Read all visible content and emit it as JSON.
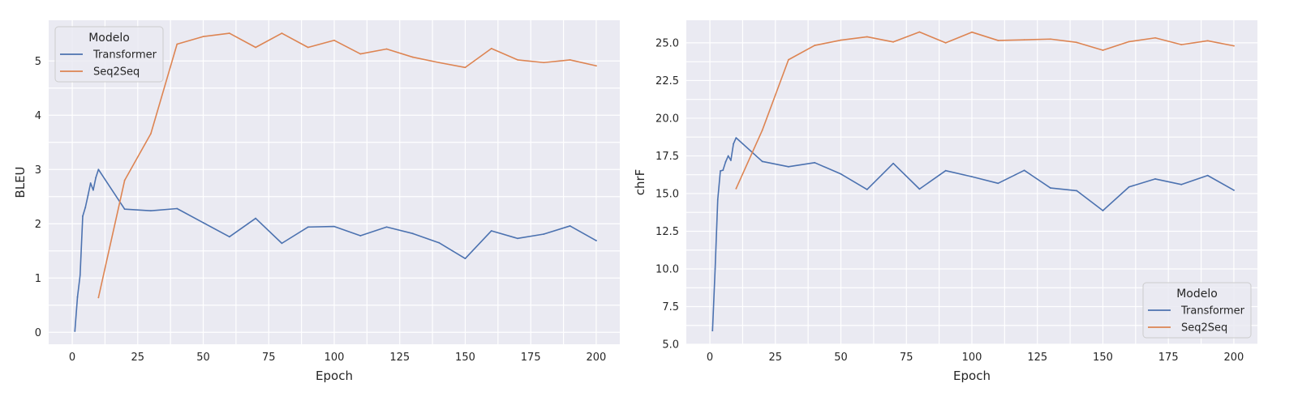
{
  "chart_data": [
    {
      "type": "line",
      "title": "",
      "xlabel": "Epoch",
      "ylabel": "BLEU",
      "xlim": [
        -9,
        209
      ],
      "ylim": [
        -0.22,
        5.75
      ],
      "xticks": [
        0,
        25,
        50,
        75,
        100,
        125,
        150,
        175,
        200
      ],
      "yticks": [
        0,
        1,
        2,
        3,
        4,
        5
      ],
      "grid": true,
      "legend": {
        "title": "Modelo",
        "placement": "upper-left"
      },
      "series": [
        {
          "name": "Transformer",
          "color": "#4c72b0",
          "x": [
            1,
            2,
            3,
            4,
            5,
            6,
            7,
            8,
            9,
            10,
            20,
            30,
            40,
            50,
            60,
            70,
            80,
            90,
            100,
            110,
            120,
            130,
            140,
            150,
            160,
            170,
            180,
            190,
            200
          ],
          "y": [
            0.02,
            0.65,
            1.05,
            2.14,
            2.3,
            2.52,
            2.75,
            2.62,
            2.85,
            3.0,
            2.27,
            2.24,
            2.28,
            2.02,
            1.76,
            2.1,
            1.64,
            1.94,
            1.95,
            1.78,
            1.94,
            1.82,
            1.65,
            1.36,
            1.87,
            1.73,
            1.81,
            1.96,
            1.69
          ]
        },
        {
          "name": "Seq2Seq",
          "color": "#dd8452",
          "x": [
            10,
            20,
            30,
            40,
            50,
            60,
            70,
            80,
            90,
            100,
            110,
            120,
            130,
            140,
            150,
            160,
            170,
            180,
            190,
            200
          ],
          "y": [
            0.64,
            2.8,
            3.66,
            5.31,
            5.45,
            5.51,
            5.25,
            5.51,
            5.25,
            5.38,
            5.13,
            5.22,
            5.07,
            4.97,
            4.88,
            5.23,
            5.02,
            4.97,
            5.02,
            4.91
          ]
        }
      ]
    },
    {
      "type": "line",
      "title": "",
      "xlabel": "Epoch",
      "ylabel": "chrF",
      "xlim": [
        -9,
        209
      ],
      "ylim": [
        5.0,
        26.5
      ],
      "xticks": [
        0,
        25,
        50,
        75,
        100,
        125,
        150,
        175,
        200
      ],
      "yticks": [
        5.0,
        7.5,
        10.0,
        12.5,
        15.0,
        17.5,
        20.0,
        22.5,
        25.0
      ],
      "ytick_labels": [
        "5.0",
        "7.5",
        "10.0",
        "12.5",
        "15.0",
        "17.5",
        "20.0",
        "22.5",
        "25.0"
      ],
      "grid": true,
      "legend": {
        "title": "Modelo",
        "placement": "lower-right"
      },
      "series": [
        {
          "name": "Transformer",
          "color": "#4c72b0",
          "x": [
            1,
            2,
            3,
            4,
            5,
            6,
            7,
            8,
            9,
            10,
            20,
            30,
            40,
            50,
            60,
            70,
            80,
            90,
            100,
            110,
            120,
            130,
            140,
            150,
            160,
            170,
            180,
            190,
            200
          ],
          "y": [
            5.9,
            10.0,
            14.6,
            16.5,
            16.55,
            17.1,
            17.5,
            17.2,
            18.3,
            18.7,
            17.13,
            16.78,
            17.05,
            16.3,
            15.27,
            17.0,
            15.3,
            16.52,
            16.12,
            15.68,
            16.54,
            15.37,
            15.19,
            13.87,
            15.44,
            15.97,
            15.6,
            16.2,
            15.22
          ]
        },
        {
          "name": "Seq2Seq",
          "color": "#dd8452",
          "x": [
            10,
            20,
            30,
            40,
            50,
            60,
            70,
            80,
            90,
            100,
            110,
            120,
            130,
            140,
            150,
            160,
            170,
            180,
            190,
            200
          ],
          "y": [
            15.33,
            19.2,
            23.88,
            24.83,
            25.18,
            25.4,
            25.06,
            25.72,
            25.0,
            25.71,
            25.16,
            25.2,
            25.25,
            25.03,
            24.51,
            25.08,
            25.33,
            24.88,
            25.14,
            24.8
          ]
        }
      ]
    }
  ]
}
